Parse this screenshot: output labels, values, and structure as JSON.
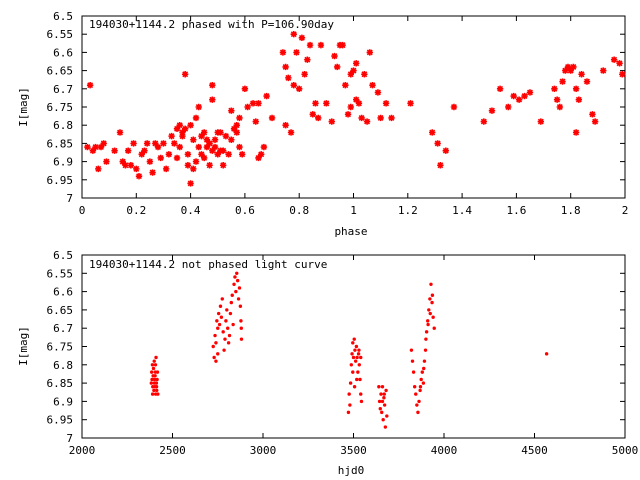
{
  "colors": {
    "series": "#ff0000",
    "axes": "#000000",
    "background": "#ffffff"
  },
  "chart_data": [
    {
      "type": "scatter",
      "title": "194030+1144.2 phased with P=106.90day",
      "xlabel": "phase",
      "ylabel": "I[mag]",
      "xlim": [
        0,
        2
      ],
      "ylim": [
        6.5,
        7
      ],
      "y_inverted": true,
      "grid": false,
      "marker": "star",
      "xticks": [
        "0",
        "0.2",
        "0.4",
        "0.6",
        "0.8",
        "1",
        "1.2",
        "1.4",
        "1.6",
        "1.8",
        "2"
      ],
      "yticks": [
        "6.5",
        "6.55",
        "6.6",
        "6.65",
        "6.7",
        "6.75",
        "6.8",
        "6.85",
        "6.9",
        "6.95",
        "7"
      ],
      "points": [
        [
          0.03,
          6.69
        ],
        [
          0.02,
          6.86
        ],
        [
          0.04,
          6.87
        ],
        [
          0.05,
          6.86
        ],
        [
          0.07,
          6.86
        ],
        [
          0.06,
          6.92
        ],
        [
          0.08,
          6.85
        ],
        [
          0.09,
          6.9
        ],
        [
          0.12,
          6.87
        ],
        [
          0.14,
          6.82
        ],
        [
          0.15,
          6.9
        ],
        [
          0.16,
          6.91
        ],
        [
          0.17,
          6.87
        ],
        [
          0.18,
          6.91
        ],
        [
          0.19,
          6.85
        ],
        [
          0.2,
          6.92
        ],
        [
          0.21,
          6.94
        ],
        [
          0.22,
          6.88
        ],
        [
          0.23,
          6.87
        ],
        [
          0.24,
          6.85
        ],
        [
          0.25,
          6.9
        ],
        [
          0.26,
          6.93
        ],
        [
          0.27,
          6.85
        ],
        [
          0.28,
          6.86
        ],
        [
          0.29,
          6.89
        ],
        [
          0.3,
          6.85
        ],
        [
          0.31,
          6.92
        ],
        [
          0.32,
          6.88
        ],
        [
          0.33,
          6.83
        ],
        [
          0.34,
          6.85
        ],
        [
          0.35,
          6.81
        ],
        [
          0.35,
          6.89
        ],
        [
          0.36,
          6.8
        ],
        [
          0.36,
          6.86
        ],
        [
          0.37,
          6.82
        ],
        [
          0.37,
          6.83
        ],
        [
          0.38,
          6.81
        ],
        [
          0.38,
          6.66
        ],
        [
          0.39,
          6.88
        ],
        [
          0.39,
          6.91
        ],
        [
          0.4,
          6.8
        ],
        [
          0.4,
          6.96
        ],
        [
          0.41,
          6.92
        ],
        [
          0.41,
          6.84
        ],
        [
          0.42,
          6.78
        ],
        [
          0.42,
          6.9
        ],
        [
          0.43,
          6.75
        ],
        [
          0.43,
          6.86
        ],
        [
          0.44,
          6.83
        ],
        [
          0.44,
          6.88
        ],
        [
          0.45,
          6.82
        ],
        [
          0.45,
          6.89
        ],
        [
          0.46,
          6.84
        ],
        [
          0.46,
          6.86
        ],
        [
          0.47,
          6.85
        ],
        [
          0.47,
          6.91
        ],
        [
          0.48,
          6.87
        ],
        [
          0.48,
          6.69
        ],
        [
          0.48,
          6.73
        ],
        [
          0.49,
          6.86
        ],
        [
          0.49,
          6.84
        ],
        [
          0.5,
          6.82
        ],
        [
          0.5,
          6.88
        ],
        [
          0.51,
          6.87
        ],
        [
          0.51,
          6.82
        ],
        [
          0.52,
          6.87
        ],
        [
          0.52,
          6.91
        ],
        [
          0.53,
          6.83
        ],
        [
          0.54,
          6.88
        ],
        [
          0.55,
          6.84
        ],
        [
          0.55,
          6.76
        ],
        [
          0.56,
          6.81
        ],
        [
          0.57,
          6.8
        ],
        [
          0.57,
          6.82
        ],
        [
          0.58,
          6.86
        ],
        [
          0.58,
          6.78
        ],
        [
          0.59,
          6.88
        ],
        [
          0.6,
          6.7
        ],
        [
          0.61,
          6.75
        ],
        [
          0.63,
          6.74
        ],
        [
          0.64,
          6.79
        ],
        [
          0.65,
          6.74
        ],
        [
          0.65,
          6.89
        ],
        [
          0.66,
          6.88
        ],
        [
          0.67,
          6.86
        ],
        [
          0.68,
          6.72
        ],
        [
          0.7,
          6.78
        ],
        [
          0.74,
          6.6
        ],
        [
          0.75,
          6.64
        ],
        [
          0.75,
          6.8
        ],
        [
          0.76,
          6.67
        ],
        [
          0.77,
          6.82
        ],
        [
          0.78,
          6.55
        ],
        [
          0.78,
          6.69
        ],
        [
          0.79,
          6.6
        ],
        [
          0.8,
          6.7
        ],
        [
          0.81,
          6.56
        ],
        [
          0.82,
          6.66
        ],
        [
          0.83,
          6.62
        ],
        [
          0.84,
          6.58
        ],
        [
          0.85,
          6.77
        ],
        [
          0.86,
          6.74
        ],
        [
          0.87,
          6.78
        ],
        [
          0.88,
          6.58
        ],
        [
          0.9,
          6.74
        ],
        [
          0.92,
          6.79
        ],
        [
          0.93,
          6.61
        ],
        [
          0.94,
          6.64
        ],
        [
          0.95,
          6.58
        ],
        [
          0.96,
          6.58
        ],
        [
          0.97,
          6.69
        ],
        [
          0.98,
          6.77
        ],
        [
          0.99,
          6.66
        ],
        [
          0.99,
          6.75
        ],
        [
          1.0,
          6.65
        ],
        [
          1.01,
          6.63
        ],
        [
          1.01,
          6.73
        ],
        [
          1.02,
          6.74
        ],
        [
          1.03,
          6.78
        ],
        [
          1.04,
          6.66
        ],
        [
          1.05,
          6.79
        ],
        [
          1.06,
          6.6
        ],
        [
          1.07,
          6.69
        ],
        [
          1.09,
          6.71
        ],
        [
          1.1,
          6.78
        ],
        [
          1.12,
          6.74
        ],
        [
          1.14,
          6.78
        ],
        [
          1.21,
          6.74
        ],
        [
          1.29,
          6.82
        ],
        [
          1.31,
          6.85
        ],
        [
          1.32,
          6.91
        ],
        [
          1.34,
          6.87
        ],
        [
          1.37,
          6.75
        ],
        [
          1.48,
          6.79
        ],
        [
          1.51,
          6.76
        ],
        [
          1.54,
          6.7
        ],
        [
          1.57,
          6.75
        ],
        [
          1.59,
          6.72
        ],
        [
          1.61,
          6.73
        ],
        [
          1.63,
          6.72
        ],
        [
          1.65,
          6.71
        ],
        [
          1.69,
          6.79
        ],
        [
          1.74,
          6.7
        ],
        [
          1.75,
          6.73
        ],
        [
          1.76,
          6.75
        ],
        [
          1.77,
          6.68
        ],
        [
          1.78,
          6.65
        ],
        [
          1.79,
          6.64
        ],
        [
          1.8,
          6.65
        ],
        [
          1.81,
          6.64
        ],
        [
          1.82,
          6.7
        ],
        [
          1.82,
          6.82
        ],
        [
          1.83,
          6.73
        ],
        [
          1.84,
          6.66
        ],
        [
          1.86,
          6.68
        ],
        [
          1.88,
          6.77
        ],
        [
          1.89,
          6.79
        ],
        [
          1.92,
          6.65
        ],
        [
          1.96,
          6.62
        ],
        [
          1.98,
          6.63
        ],
        [
          1.99,
          6.66
        ]
      ]
    },
    {
      "type": "scatter",
      "title": "194030+1144.2 not phased light curve",
      "xlabel": "hjd0",
      "ylabel": "I[mag]",
      "xlim": [
        2000,
        5000
      ],
      "ylim": [
        6.5,
        7
      ],
      "y_inverted": true,
      "grid": false,
      "marker": "dot",
      "xticks": [
        "2000",
        "2500",
        "3000",
        "3500",
        "4000",
        "4500",
        "5000"
      ],
      "yticks": [
        "6.5",
        "6.55",
        "6.6",
        "6.65",
        "6.7",
        "6.75",
        "6.8",
        "6.85",
        "6.9",
        "6.95",
        "7"
      ],
      "points": [
        [
          2383,
          6.85
        ],
        [
          2385,
          6.82
        ],
        [
          2387,
          6.84
        ],
        [
          2389,
          6.8
        ],
        [
          2391,
          6.86
        ],
        [
          2393,
          6.83
        ],
        [
          2395,
          6.81
        ],
        [
          2397,
          6.87
        ],
        [
          2399,
          6.79
        ],
        [
          2401,
          6.84
        ],
        [
          2403,
          6.86
        ],
        [
          2405,
          6.82
        ],
        [
          2407,
          6.88
        ],
        [
          2409,
          6.78
        ],
        [
          2411,
          6.85
        ],
        [
          2413,
          6.87
        ],
        [
          2415,
          6.84
        ],
        [
          2417,
          6.82
        ],
        [
          2390,
          6.88
        ],
        [
          2400,
          6.85
        ],
        [
          2406,
          6.8
        ],
        [
          2412,
          6.86
        ],
        [
          2419,
          6.88
        ],
        [
          2404,
          6.83
        ],
        [
          2725,
          6.75
        ],
        [
          2730,
          6.78
        ],
        [
          2735,
          6.72
        ],
        [
          2740,
          6.74
        ],
        [
          2745,
          6.68
        ],
        [
          2750,
          6.7
        ],
        [
          2755,
          6.66
        ],
        [
          2760,
          6.69
        ],
        [
          2765,
          6.64
        ],
        [
          2770,
          6.67
        ],
        [
          2775,
          6.62
        ],
        [
          2780,
          6.71
        ],
        [
          2785,
          6.76
        ],
        [
          2790,
          6.73
        ],
        [
          2795,
          6.68
        ],
        [
          2800,
          6.65
        ],
        [
          2805,
          6.7
        ],
        [
          2810,
          6.74
        ],
        [
          2815,
          6.72
        ],
        [
          2820,
          6.66
        ],
        [
          2825,
          6.63
        ],
        [
          2830,
          6.61
        ],
        [
          2835,
          6.69
        ],
        [
          2840,
          6.58
        ],
        [
          2845,
          6.56
        ],
        [
          2850,
          6.6
        ],
        [
          2855,
          6.55
        ],
        [
          2860,
          6.57
        ],
        [
          2865,
          6.62
        ],
        [
          2870,
          6.59
        ],
        [
          2875,
          6.64
        ],
        [
          2878,
          6.68
        ],
        [
          2880,
          6.7
        ],
        [
          2881,
          6.73
        ],
        [
          2740,
          6.79
        ],
        [
          2750,
          6.77
        ],
        [
          3472,
          6.93
        ],
        [
          3476,
          6.88
        ],
        [
          3480,
          6.91
        ],
        [
          3484,
          6.85
        ],
        [
          3488,
          6.8
        ],
        [
          3492,
          6.77
        ],
        [
          3496,
          6.74
        ],
        [
          3500,
          6.78
        ],
        [
          3504,
          6.73
        ],
        [
          3508,
          6.76
        ],
        [
          3512,
          6.79
        ],
        [
          3516,
          6.75
        ],
        [
          3520,
          6.78
        ],
        [
          3524,
          6.82
        ],
        [
          3528,
          6.77
        ],
        [
          3532,
          6.8
        ],
        [
          3536,
          6.84
        ],
        [
          3540,
          6.88
        ],
        [
          3544,
          6.9
        ],
        [
          3496,
          6.82
        ],
        [
          3506,
          6.86
        ],
        [
          3518,
          6.84
        ],
        [
          3530,
          6.76
        ],
        [
          3540,
          6.78
        ],
        [
          3640,
          6.86
        ],
        [
          3644,
          6.9
        ],
        [
          3648,
          6.92
        ],
        [
          3652,
          6.88
        ],
        [
          3656,
          6.93
        ],
        [
          3660,
          6.86
        ],
        [
          3664,
          6.95
        ],
        [
          3668,
          6.89
        ],
        [
          3672,
          6.91
        ],
        [
          3676,
          6.97
        ],
        [
          3680,
          6.87
        ],
        [
          3684,
          6.94
        ],
        [
          3660,
          6.9
        ],
        [
          3670,
          6.88
        ],
        [
          3820,
          6.76
        ],
        [
          3826,
          6.79
        ],
        [
          3832,
          6.82
        ],
        [
          3838,
          6.86
        ],
        [
          3844,
          6.88
        ],
        [
          3850,
          6.91
        ],
        [
          3856,
          6.93
        ],
        [
          3862,
          6.9
        ],
        [
          3868,
          6.87
        ],
        [
          3874,
          6.84
        ],
        [
          3880,
          6.82
        ],
        [
          3886,
          6.85
        ],
        [
          3892,
          6.79
        ],
        [
          3898,
          6.76
        ],
        [
          3904,
          6.71
        ],
        [
          3910,
          6.68
        ],
        [
          3916,
          6.65
        ],
        [
          3922,
          6.62
        ],
        [
          3928,
          6.58
        ],
        [
          3934,
          6.63
        ],
        [
          3940,
          6.67
        ],
        [
          3946,
          6.7
        ],
        [
          3900,
          6.73
        ],
        [
          3912,
          6.69
        ],
        [
          3924,
          6.66
        ],
        [
          3936,
          6.61
        ],
        [
          3888,
          6.81
        ],
        [
          3870,
          6.86
        ],
        [
          4567,
          6.77
        ]
      ]
    }
  ]
}
